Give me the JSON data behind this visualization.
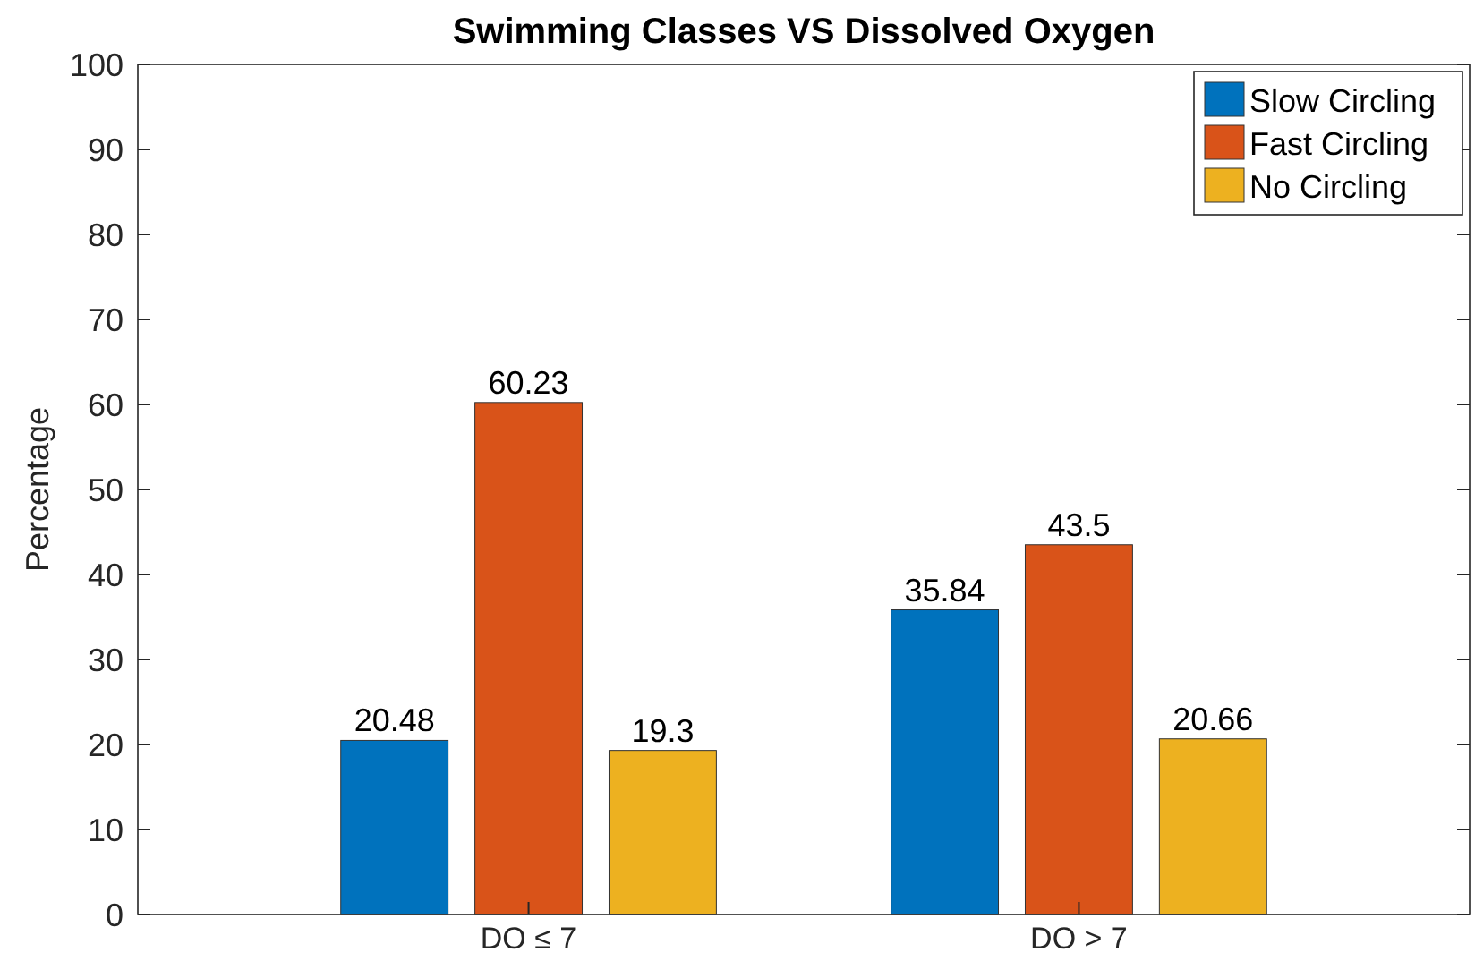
{
  "chart_data": {
    "type": "bar",
    "title": "Swimming Classes VS Dissolved Oxygen",
    "ylabel": "Percentage",
    "categories": [
      "DO ≤ 7",
      "DO > 7"
    ],
    "series": [
      {
        "name": "Slow Circling",
        "color": "#0072bd",
        "values": [
          20.48,
          35.84
        ]
      },
      {
        "name": "Fast Circling",
        "color": "#d95319",
        "values": [
          60.23,
          43.5
        ]
      },
      {
        "name": "No Circling",
        "color": "#edb120",
        "values": [
          19.3,
          20.66
        ]
      }
    ],
    "ylim": [
      0,
      100
    ],
    "yticks": [
      0,
      10,
      20,
      30,
      40,
      50,
      60,
      70,
      80,
      90,
      100
    ],
    "data_labels": true,
    "legend": "top right",
    "grid": false
  }
}
